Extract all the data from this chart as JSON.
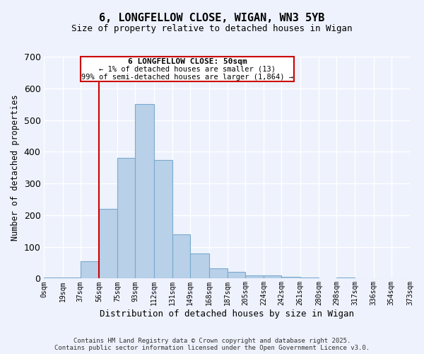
{
  "title": "6, LONGFELLOW CLOSE, WIGAN, WN3 5YB",
  "subtitle": "Size of property relative to detached houses in Wigan",
  "xlabel": "Distribution of detached houses by size in Wigan",
  "ylabel": "Number of detached properties",
  "bar_color": "#b8d0e8",
  "bar_edge_color": "#7aaacf",
  "background_color": "#eef2fc",
  "grid_color": "#ffffff",
  "annotation_box_color": "#ffffff",
  "annotation_box_edge": "#cc0000",
  "vline_color": "#cc0000",
  "vline_x": 56,
  "annotation_title": "6 LONGFELLOW CLOSE: 50sqm",
  "annotation_line1": "← 1% of detached houses are smaller (13)",
  "annotation_line2": "99% of semi-detached houses are larger (1,864) →",
  "tick_labels": [
    "0sqm",
    "19sqm",
    "37sqm",
    "56sqm",
    "75sqm",
    "93sqm",
    "112sqm",
    "131sqm",
    "149sqm",
    "168sqm",
    "187sqm",
    "205sqm",
    "224sqm",
    "242sqm",
    "261sqm",
    "280sqm",
    "298sqm",
    "317sqm",
    "336sqm",
    "354sqm",
    "373sqm"
  ],
  "bin_edges": [
    0,
    19,
    37,
    56,
    75,
    93,
    112,
    131,
    149,
    168,
    187,
    205,
    224,
    242,
    261,
    280,
    298,
    317,
    336,
    354,
    373
  ],
  "bar_heights": [
    3,
    3,
    55,
    220,
    380,
    550,
    375,
    140,
    80,
    32,
    20,
    10,
    10,
    5,
    3,
    0,
    3,
    0,
    0,
    0
  ],
  "ylim": [
    0,
    700
  ],
  "yticks": [
    0,
    100,
    200,
    300,
    400,
    500,
    600,
    700
  ],
  "footer1": "Contains HM Land Registry data © Crown copyright and database right 2025.",
  "footer2": "Contains public sector information licensed under the Open Government Licence v3.0."
}
